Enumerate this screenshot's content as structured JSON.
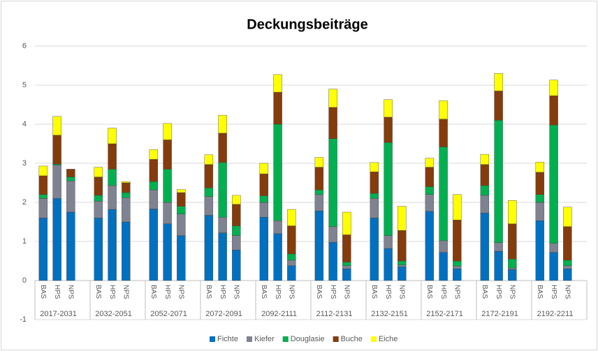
{
  "chart_data": {
    "type": "bar",
    "stacked": true,
    "title": "Deckungsbeiträge",
    "categories": [
      "BAS",
      "HPS",
      "NPS",
      "BAS",
      "HPS",
      "NPS",
      "BAS",
      "HPS",
      "NPS",
      "BAS",
      "HPS",
      "NPS",
      "BAS",
      "HPS",
      "NPS",
      "BAS",
      "HPS",
      "NPS",
      "BAS",
      "HPS",
      "NPS",
      "BAS",
      "HPS",
      "NPS",
      "BAS",
      "HPS",
      "NPS",
      "BAS",
      "HPS",
      "NPS"
    ],
    "groups": [
      "2017-2031",
      "2032-2051",
      "2052-2071",
      "2072-2091",
      "2092-2111",
      "2112-2131",
      "2132-2151",
      "2152-2171",
      "2172-2191",
      "2192-2211"
    ],
    "series": [
      {
        "name": "Fichte",
        "color": "#0070c0",
        "values": [
          1.6,
          2.1,
          1.75,
          1.6,
          1.82,
          1.5,
          1.83,
          1.45,
          1.15,
          1.67,
          1.22,
          0.78,
          1.62,
          1.2,
          0.38,
          1.78,
          0.98,
          0.3,
          1.6,
          0.82,
          0.35,
          1.77,
          0.72,
          0.3,
          1.73,
          0.75,
          0.28,
          1.53,
          0.72,
          0.3
        ]
      },
      {
        "name": "Kiefer",
        "color": "#7f8391",
        "values": [
          0.5,
          0.85,
          0.8,
          0.43,
          0.61,
          0.62,
          0.49,
          0.55,
          0.55,
          0.48,
          0.4,
          0.37,
          0.38,
          0.33,
          0.14,
          0.42,
          0.4,
          0.08,
          0.5,
          0.33,
          0.05,
          0.43,
          0.3,
          0.07,
          0.45,
          0.22,
          0.04,
          0.47,
          0.23,
          0.08
        ]
      },
      {
        "name": "Douglasie",
        "color": "#00b050",
        "values": [
          0.1,
          0.03,
          0.1,
          0.15,
          0.42,
          0.13,
          0.21,
          0.85,
          0.2,
          0.22,
          1.4,
          0.25,
          0.17,
          2.47,
          0.16,
          0.12,
          2.25,
          0.09,
          0.13,
          2.38,
          0.1,
          0.2,
          2.4,
          0.13,
          0.25,
          3.13,
          0.23,
          0.2,
          3.03,
          0.14
        ]
      },
      {
        "name": "Buche",
        "color": "#843c0c",
        "values": [
          0.48,
          0.74,
          0.2,
          0.47,
          0.65,
          0.25,
          0.57,
          0.75,
          0.35,
          0.6,
          0.75,
          0.55,
          0.56,
          0.82,
          0.72,
          0.58,
          0.8,
          0.7,
          0.55,
          0.65,
          0.78,
          0.5,
          0.71,
          1.05,
          0.54,
          0.75,
          0.9,
          0.57,
          0.75,
          0.86
        ]
      },
      {
        "name": "Eiche",
        "color": "#ffff00",
        "values": [
          0.25,
          0.48,
          0,
          0.25,
          0.4,
          0.03,
          0.25,
          0.42,
          0.08,
          0.25,
          0.46,
          0.23,
          0.27,
          0.45,
          0.42,
          0.25,
          0.47,
          0.58,
          0.24,
          0.45,
          0.62,
          0.23,
          0.47,
          0.65,
          0.26,
          0.45,
          0.6,
          0.26,
          0.4,
          0.5
        ]
      }
    ],
    "ylim": [
      -1,
      6
    ],
    "yticks": [
      -1,
      0,
      1,
      2,
      3,
      4,
      5,
      6
    ],
    "grid": true,
    "legend": "bottom"
  }
}
